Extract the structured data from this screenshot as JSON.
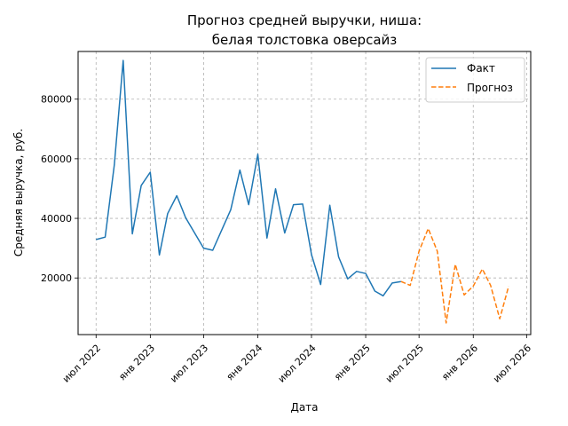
{
  "chart_data": {
    "type": "line",
    "title": [
      "Прогноз средней выручки, ниша:",
      "белая толстовка оверсайз"
    ],
    "xlabel": "Дата",
    "ylabel": "Средняя выручка, руб.",
    "ylim": [
      1000,
      96000
    ],
    "yticks": [
      20000,
      40000,
      60000,
      80000
    ],
    "xlim": [
      "2022-05-01",
      "2026-07-15"
    ],
    "xticks": [
      {
        "date": "2022-07-01",
        "label": "июл 2022"
      },
      {
        "date": "2023-01-01",
        "label": "янв 2023"
      },
      {
        "date": "2023-07-01",
        "label": "июл 2023"
      },
      {
        "date": "2024-01-01",
        "label": "янв 2024"
      },
      {
        "date": "2024-07-01",
        "label": "июл 2024"
      },
      {
        "date": "2025-01-01",
        "label": "янв 2025"
      },
      {
        "date": "2025-07-01",
        "label": "июл 2025"
      },
      {
        "date": "2026-01-01",
        "label": "янв 2026"
      },
      {
        "date": "2026-07-01",
        "label": "июл 2026"
      }
    ],
    "grid": true,
    "legend_position": "top-right",
    "series": [
      {
        "name": "Факт",
        "color": "#1f77b4",
        "style": "solid",
        "points": [
          [
            "2022-07-01",
            32900
          ],
          [
            "2022-08-01",
            33700
          ],
          [
            "2022-09-01",
            57900
          ],
          [
            "2022-10-01",
            93000
          ],
          [
            "2022-11-01",
            34800
          ],
          [
            "2022-12-01",
            51000
          ],
          [
            "2023-01-01",
            55500
          ],
          [
            "2023-02-01",
            27700
          ],
          [
            "2023-03-01",
            41600
          ],
          [
            "2023-04-01",
            47600
          ],
          [
            "2023-05-01",
            40200
          ],
          [
            "2023-07-01",
            30000
          ],
          [
            "2023-08-01",
            29300
          ],
          [
            "2023-10-01",
            42900
          ],
          [
            "2023-11-01",
            56200
          ],
          [
            "2023-12-01",
            44600
          ],
          [
            "2024-01-01",
            61500
          ],
          [
            "2024-02-01",
            33400
          ],
          [
            "2024-03-01",
            49900
          ],
          [
            "2024-04-01",
            35100
          ],
          [
            "2024-05-01",
            44600
          ],
          [
            "2024-06-01",
            44800
          ],
          [
            "2024-07-01",
            27800
          ],
          [
            "2024-08-01",
            17800
          ],
          [
            "2024-09-01",
            44400
          ],
          [
            "2024-10-01",
            27100
          ],
          [
            "2024-11-01",
            19700
          ],
          [
            "2024-12-01",
            22200
          ],
          [
            "2025-01-01",
            21500
          ],
          [
            "2025-02-01",
            15600
          ],
          [
            "2025-03-01",
            14000
          ],
          [
            "2025-04-01",
            18300
          ],
          [
            "2025-05-01",
            18800
          ]
        ]
      },
      {
        "name": "Прогноз",
        "color": "#ff7f0e",
        "style": "dashed",
        "points": [
          [
            "2025-05-01",
            18800
          ],
          [
            "2025-06-01",
            17500
          ],
          [
            "2025-07-01",
            29000
          ],
          [
            "2025-08-01",
            36600
          ],
          [
            "2025-09-01",
            29000
          ],
          [
            "2025-10-01",
            4900
          ],
          [
            "2025-11-01",
            24600
          ],
          [
            "2025-12-01",
            14300
          ],
          [
            "2026-01-01",
            17300
          ],
          [
            "2026-02-01",
            23000
          ],
          [
            "2026-03-01",
            17500
          ],
          [
            "2026-04-01",
            6300
          ],
          [
            "2026-05-01",
            17200
          ]
        ]
      }
    ]
  }
}
